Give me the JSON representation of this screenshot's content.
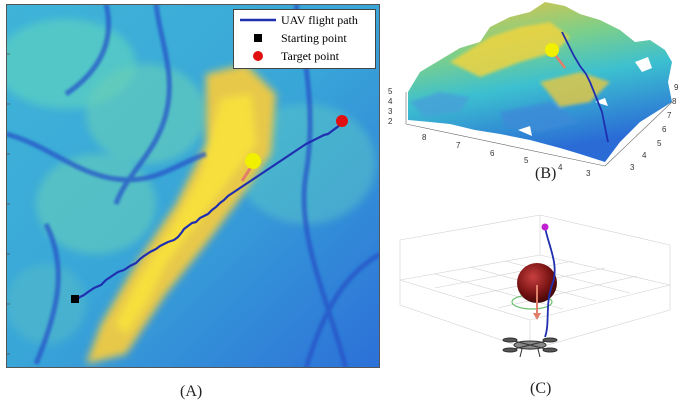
{
  "panels": {
    "a": {
      "caption": "(A)",
      "legend": {
        "path": "UAV flight path",
        "start": "Starting point",
        "target": "Target point"
      }
    },
    "b": {
      "caption": "(B)",
      "z_ticks": [
        "5",
        "4",
        "3",
        "2"
      ],
      "left_ticks": [
        "8",
        "7",
        "6",
        "5",
        "4",
        "3"
      ],
      "right_ticks": [
        "9",
        "8",
        "7",
        "6",
        "5",
        "4",
        "3"
      ]
    },
    "c": {
      "caption": "(C)"
    }
  },
  "colors": {
    "path": "#1f2fb0",
    "start": "#000000",
    "target": "#e01010",
    "obstacle": "#f0f000",
    "arrow": "#e0806a",
    "terrain_low": "#2a6bd6",
    "terrain_mid": "#3cc0d0",
    "terrain_high": "#f2c23a"
  }
}
